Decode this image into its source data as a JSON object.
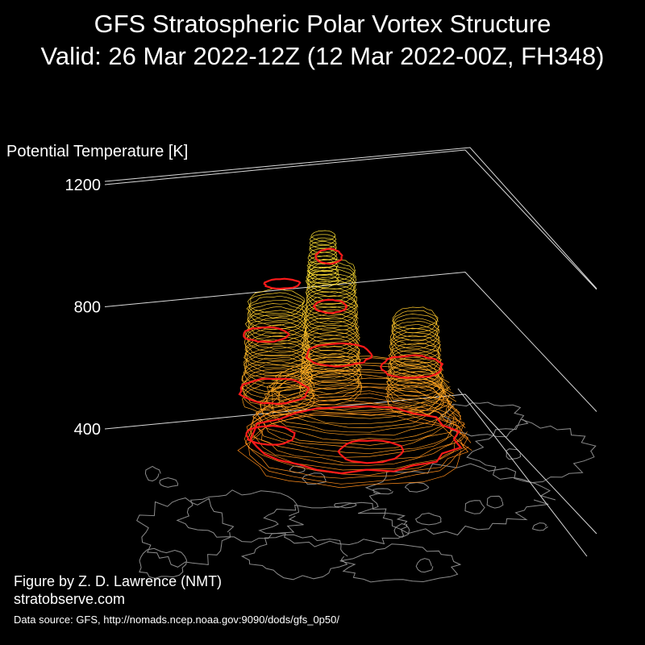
{
  "header": {
    "title": "GFS Stratospheric Polar Vortex Structure",
    "subtitle": "Valid: 26 Mar 2022-12Z  (12 Mar 2022-00Z, FH348)"
  },
  "footer": {
    "credit": "Figure by Z. D. Lawrence (NMT)",
    "website": "stratobserve.com",
    "source": "Data source: GFS, http://nomads.ncep.noaa.gov:9090/dods/gfs_0p50/"
  },
  "colors": {
    "background": "#000000",
    "axis": "#d9d9d9",
    "coastline": "#8c8c8c",
    "low_level": "#ff8c1a",
    "high_level": "#ffe033",
    "highlight": "#ff1a1a"
  },
  "chart_data": {
    "type": "3d-isosurface",
    "zlabel": "Potential Temperature [K]",
    "zticks": [
      400,
      800,
      1200
    ],
    "zlim": [
      300,
      1200
    ]
  }
}
